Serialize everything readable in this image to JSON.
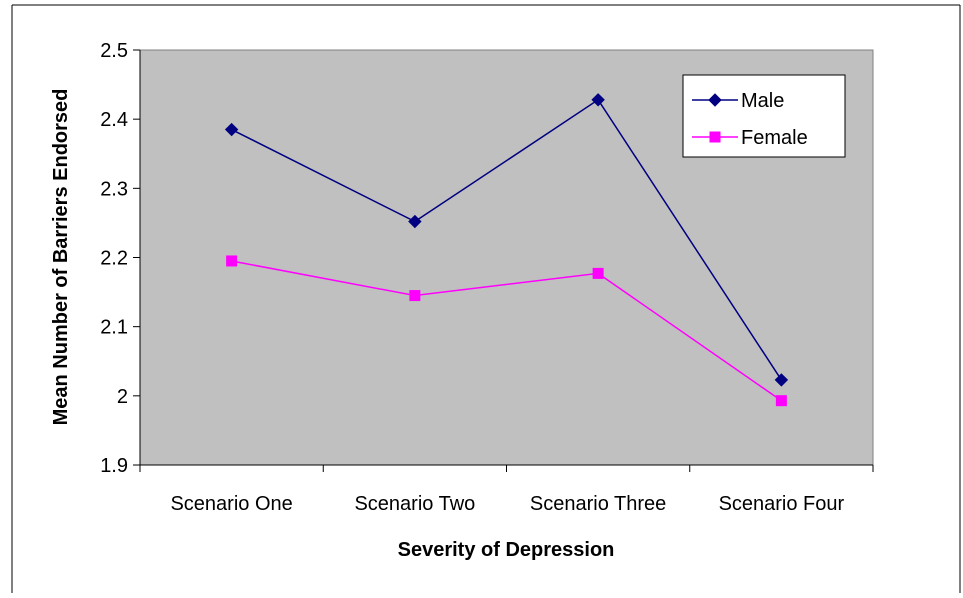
{
  "chart_data": {
    "type": "line",
    "title": "",
    "xlabel": "Severity of Depression",
    "ylabel": "Mean Number of Barriers Endorsed",
    "categories": [
      "Scenario One",
      "Scenario Two",
      "Scenario Three",
      "Scenario Four"
    ],
    "ylim": [
      1.9,
      2.5
    ],
    "yticks": [
      1.9,
      2,
      2.1,
      2.2,
      2.3,
      2.4,
      2.5
    ],
    "ytick_labels": [
      "1.9",
      "2",
      "2.1",
      "2.2",
      "2.3",
      "2.4",
      "2.5"
    ],
    "grid": false,
    "legend": "top-right",
    "plot_background": "#c0c0c0",
    "series": [
      {
        "name": "Male",
        "color": "#000080",
        "marker": "diamond",
        "values": [
          2.385,
          2.252,
          2.428,
          2.023
        ]
      },
      {
        "name": "Female",
        "color": "#ff00ff",
        "marker": "square",
        "values": [
          2.195,
          2.145,
          2.177,
          1.993
        ]
      }
    ]
  }
}
